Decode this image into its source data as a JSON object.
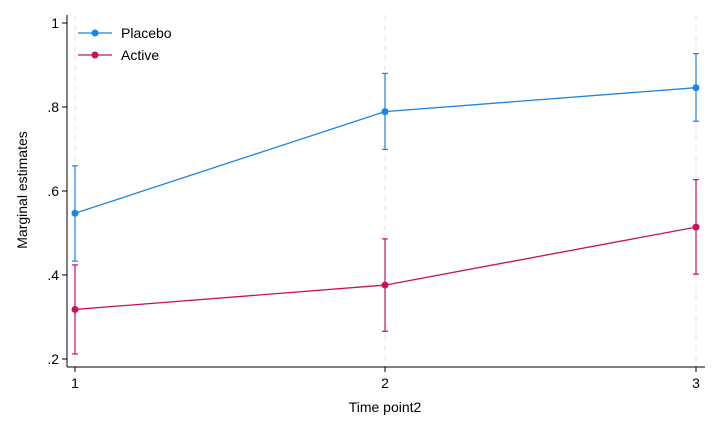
{
  "chart_data": {
    "type": "line",
    "xlabel": "Time point2",
    "ylabel": "Marginal estimates",
    "x": [
      1,
      2,
      3
    ],
    "x_tick_labels": [
      "1",
      "2",
      "3"
    ],
    "ylim": [
      0.2,
      1.0
    ],
    "y_ticks": [
      0.2,
      0.4,
      0.6,
      0.8,
      1.0
    ],
    "y_tick_labels": [
      ".2",
      ".4",
      ".6",
      ".8",
      "1"
    ],
    "grid": "vertical dashed at x ticks",
    "legend_position": "top-left",
    "series": [
      {
        "name": "Placebo",
        "color": "#1f83e0",
        "values": [
          0.547,
          0.789,
          0.846
        ],
        "ci_lower": [
          0.433,
          0.699,
          0.766
        ],
        "ci_upper": [
          0.66,
          0.88,
          0.927
        ]
      },
      {
        "name": "Active",
        "color": "#c7125d",
        "values": [
          0.318,
          0.376,
          0.514
        ],
        "ci_lower": [
          0.212,
          0.266,
          0.402
        ],
        "ci_upper": [
          0.424,
          0.486,
          0.627
        ]
      }
    ]
  }
}
